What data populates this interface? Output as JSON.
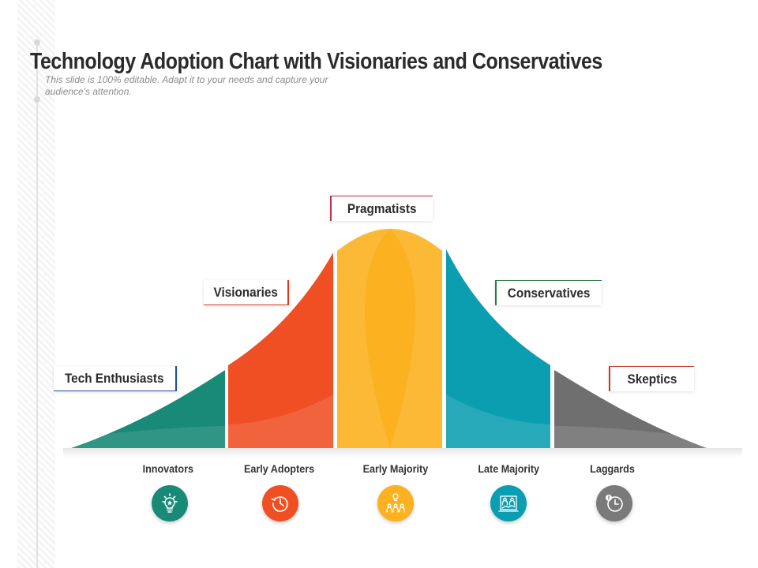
{
  "slide": {
    "title": "Technology Adoption Chart with Visionaries and Conservatives",
    "subtitle": "This slide is 100% editable. Adapt it to your needs and capture your audience's attention."
  },
  "colors": {
    "teal_dark": "#1a8a78",
    "red": "#f04e23",
    "yellow": "#fbb120",
    "blue": "#0b9eb1",
    "gray": "#7a7a7a"
  },
  "segments": [
    {
      "stage": "Innovators",
      "group": "Tech Enthusiasts",
      "color": "#1a8a78",
      "icon": "lightbulb-icon"
    },
    {
      "stage": "Early Adopters",
      "group": "Visionaries",
      "color": "#f04e23",
      "icon": "clock-history-icon"
    },
    {
      "stage": "Early Majority",
      "group": "Pragmatists",
      "color": "#fbb120",
      "icon": "team-idea-icon"
    },
    {
      "stage": "Late Majority",
      "group": "Conservatives",
      "color": "#0b9eb1",
      "icon": "people-chart-icon"
    },
    {
      "stage": "Laggards",
      "group": "Skeptics",
      "color": "#7a7a7a",
      "icon": "clock-alert-icon"
    }
  ]
}
